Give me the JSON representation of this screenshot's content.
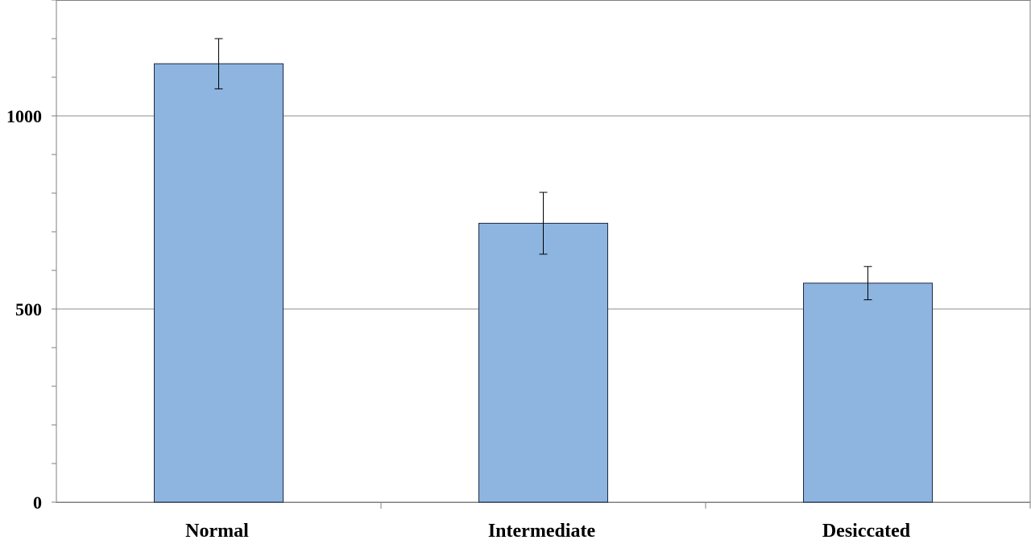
{
  "chart_data": {
    "type": "bar",
    "categories": [
      "Normal",
      "Intermediate",
      "Desiccated"
    ],
    "values": [
      1135,
      722,
      567
    ],
    "error": [
      65,
      80,
      43
    ],
    "ylim": [
      0,
      1300
    ],
    "yticks": [
      0,
      500,
      1000
    ],
    "ytick_labels": [
      "0",
      "500",
      "1000"
    ],
    "minor_tick_step": 100,
    "grid": "horizontal at major ticks",
    "title": "",
    "xlabel": "",
    "ylabel": "",
    "colors": {
      "bar_fill": "#8eb4e0",
      "bar_stroke": "#1f2a44",
      "grid": "#8c8c8c",
      "axis": "#7f7f7f",
      "frame": "#7f7f7f"
    }
  }
}
